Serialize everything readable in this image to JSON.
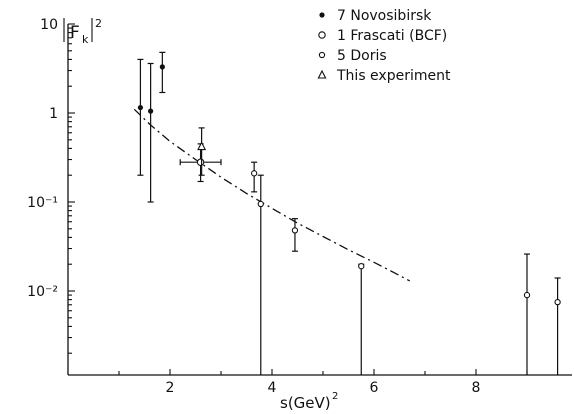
{
  "chart_data": {
    "type": "scatter",
    "ylabel": "|F_K|²",
    "xlabel": "s(GeV)²",
    "xlim": [
      0,
      9.8
    ],
    "ylim": [
      0.001,
      10
    ],
    "y_scale": "log",
    "x_ticks": [
      2,
      4,
      6,
      8
    ],
    "x_tick_labels": [
      "2",
      "4",
      "6",
      "8"
    ],
    "y_tick_labels": [
      "10",
      "1",
      "10⁻¹",
      "10⁻²"
    ],
    "legend_placement": "top-right",
    "series": [
      {
        "name": "7 Novosibirsk",
        "marker": "filled-dot",
        "points": [
          {
            "x": 1.42,
            "y": 1.15,
            "y_low": 0.2,
            "y_high": 4.0
          },
          {
            "x": 1.62,
            "y": 1.05,
            "y_low": 0.1,
            "y_high": 3.6
          },
          {
            "x": 1.85,
            "y": 3.3,
            "y_low": 1.7,
            "y_high": 4.8
          }
        ]
      },
      {
        "name": "1 Frascati (BCF)",
        "marker": "open-circle",
        "points": [
          {
            "x": 2.6,
            "y": 0.28,
            "y_low": 0.17,
            "y_high": 0.45,
            "x_low": 2.2,
            "x_high": 3.0
          }
        ]
      },
      {
        "name": "5 Doris",
        "marker": "open-circle-small",
        "points": [
          {
            "x": 3.65,
            "y": 0.21,
            "y_low": 0.13,
            "y_high": 0.28
          },
          {
            "x": 3.78,
            "y": 0.095,
            "y_low": 0.001,
            "y_high": 0.2
          },
          {
            "x": 4.45,
            "y": 0.048,
            "y_low": 0.028,
            "y_high": 0.065
          },
          {
            "x": 5.75,
            "y": 0.019,
            "y_low": 0.001,
            "y_high": 0.02
          },
          {
            "x": 9.0,
            "y": 0.009,
            "y_low": 0.001,
            "y_high": 0.026
          },
          {
            "x": 9.6,
            "y": 0.0075,
            "y_low": 0.001,
            "y_high": 0.014
          }
        ]
      },
      {
        "name": "This experiment",
        "marker": "open-triangle",
        "points": [
          {
            "x": 2.62,
            "y": 0.42,
            "y_low": 0.2,
            "y_high": 0.68
          }
        ]
      }
    ],
    "fit_curve": {
      "style": "dash-dot",
      "points": [
        [
          1.3,
          1.1
        ],
        [
          1.6,
          0.75
        ],
        [
          2.0,
          0.48
        ],
        [
          2.5,
          0.3
        ],
        [
          3.0,
          0.19
        ],
        [
          3.5,
          0.125
        ],
        [
          4.0,
          0.085
        ],
        [
          4.5,
          0.058
        ],
        [
          5.0,
          0.041
        ],
        [
          5.5,
          0.029
        ],
        [
          6.0,
          0.021
        ],
        [
          6.4,
          0.016
        ],
        [
          6.7,
          0.013
        ]
      ]
    }
  }
}
